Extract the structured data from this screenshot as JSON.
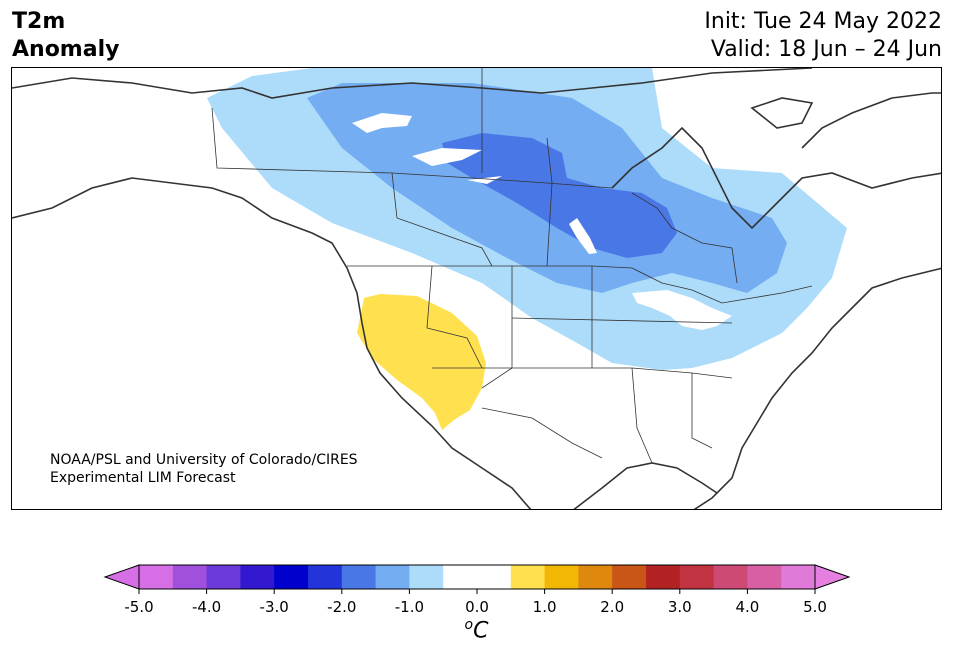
{
  "title": {
    "variable": "T2m",
    "subtitle": "Anomaly",
    "init": "Init: Tue 24 May 2022",
    "valid": "Valid: 18 Jun – 24 Jun"
  },
  "credit": {
    "line1": "NOAA/PSL and University of Colorado/CIRES",
    "line2": "Experimental LIM Forecast"
  },
  "colorbar": {
    "units_sup": "o",
    "units_main": "C",
    "tick_labels": [
      "-5.0",
      "-4.0",
      "-3.0",
      "-2.0",
      "-1.0",
      "0.0",
      "1.0",
      "2.0",
      "3.0",
      "4.0",
      "5.0"
    ],
    "colors": [
      "#d66fe6",
      "#a050dc",
      "#6b3ad8",
      "#3219cf",
      "#0000cd",
      "#2335da",
      "#4a77e6",
      "#74adf2",
      "#acdcfa",
      "#ffffff",
      "#ffffff",
      "#ffe14f",
      "#f2b705",
      "#df8810",
      "#c95516",
      "#b22222",
      "#c23342",
      "#cd4a74",
      "#d85fa4",
      "#e07ad8"
    ],
    "under_color": "#d66fe6",
    "over_color": "#e57fe0"
  },
  "anomaly_colors": {
    "light_blue": "#acdcfa",
    "mid_blue": "#74adf2",
    "deep_blue": "#4a77e6",
    "yellow": "#ffe14f"
  }
}
